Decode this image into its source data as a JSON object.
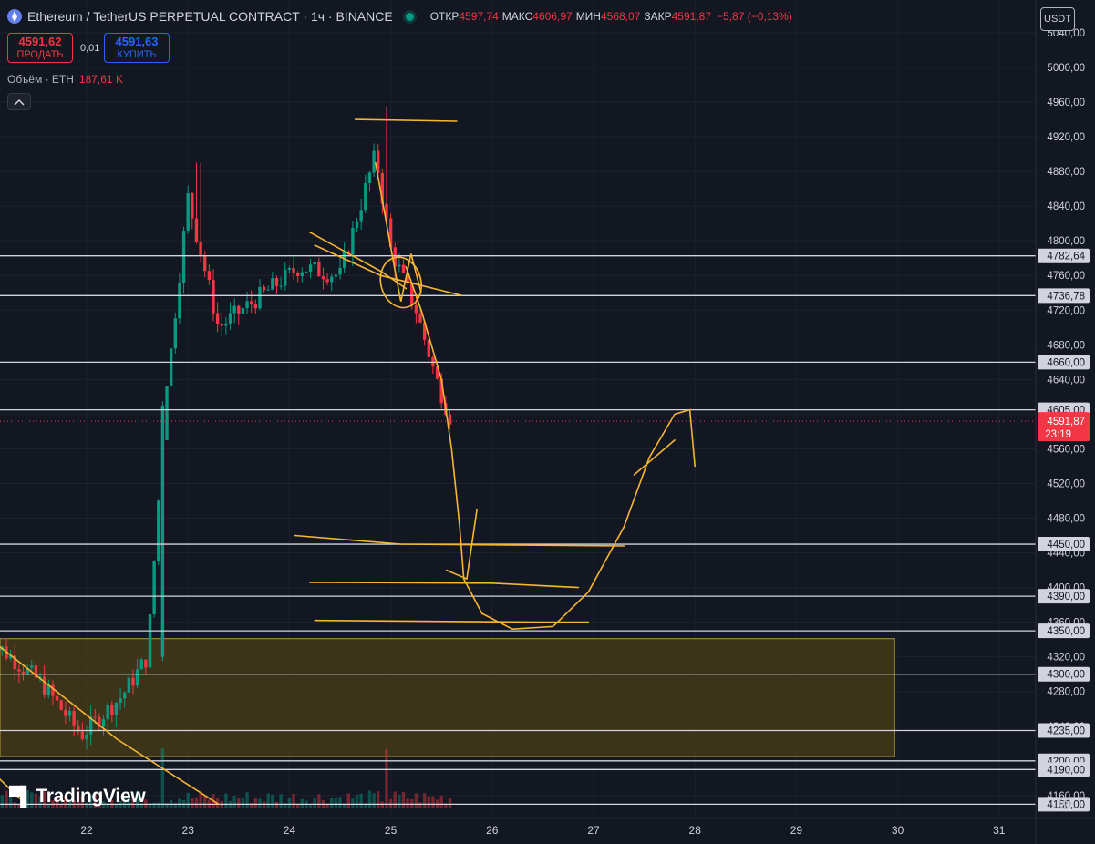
{
  "header": {
    "symbol": "Ethereum / TetherUS PERPETUAL CONTRACT · 1ч · BINANCE",
    "open_label": "ОТКР",
    "open_value": "4597,74",
    "high_label": "МАКС",
    "high_value": "4606,97",
    "low_label": "МИН",
    "low_value": "4568,07",
    "close_label": "ЗАКР",
    "close_value": "4591,87",
    "change": "−5,87 (−0,13%)",
    "logo_icon": "ethereum-logo-icon",
    "status_icon": "market-open-dot-icon"
  },
  "trade": {
    "sell_price": "4591,62",
    "sell_label": "ПРОДАТЬ",
    "spread": "0,01",
    "buy_price": "4591,63",
    "buy_label": "КУПИТЬ"
  },
  "volume_legend": {
    "label": "Объём · ETH",
    "value": "187,61 K"
  },
  "currency": "USDT",
  "brand": "TradingView",
  "colors": {
    "background": "#131722",
    "up": "#089981",
    "down": "#f23645",
    "drawing": "#f5b631",
    "level_line": "#d1d4dc",
    "zone_fill": "#4a3f17"
  },
  "chart_data": {
    "type": "candlestick",
    "x_axis": {
      "ticks": [
        "22",
        "23",
        "24",
        "25",
        "26",
        "27",
        "28",
        "29",
        "30",
        "31"
      ]
    },
    "y_axis": {
      "range": [
        4150,
        5050
      ],
      "ticks": [
        "5040,00",
        "5000,00",
        "4960,00",
        "4920,00",
        "4880,00",
        "4840,00",
        "4800,00",
        "4760,00",
        "4720,00",
        "4680,00",
        "4640,00",
        "4600,00",
        "4560,00",
        "4520,00",
        "4480,00",
        "4440,00",
        "4400,00",
        "4360,00",
        "4320,00",
        "4280,00",
        "4240,00",
        "4200,00",
        "4160,00"
      ]
    },
    "horizontal_levels": [
      {
        "price": 4782.64,
        "label": "4782,64"
      },
      {
        "price": 4736.78,
        "label": "4736,78"
      },
      {
        "price": 4660,
        "label": "4660,00"
      },
      {
        "price": 4605,
        "label": "4605,00"
      },
      {
        "price": 4450,
        "label": "4450,00"
      },
      {
        "price": 4390,
        "label": "4390,00"
      },
      {
        "price": 4350,
        "label": "4350,00"
      },
      {
        "price": 4300,
        "label": "4300,00"
      },
      {
        "price": 4235,
        "label": "4235,00"
      },
      {
        "price": 4200,
        "label": "4200,00"
      },
      {
        "price": 4190,
        "label": "4190,00"
      },
      {
        "price": 4150,
        "label": "4150,00"
      }
    ],
    "current_price": {
      "price": 4591.87,
      "label": "4591,87",
      "countdown": "23:19"
    },
    "demand_zone": {
      "price_top": 4341,
      "price_bottom": 4205,
      "day_end": 29.97
    },
    "candles_summary": [
      {
        "day": 21.15,
        "close": 4330
      },
      {
        "day": 21.55,
        "close": 4290
      },
      {
        "day": 21.95,
        "close": 4230
      },
      {
        "day": 22.35,
        "close": 4275
      },
      {
        "day": 22.6,
        "close": 4320
      },
      {
        "day": 22.78,
        "close": 4620
      },
      {
        "day": 23.0,
        "close": 4850
      },
      {
        "day": 23.3,
        "close": 4700
      },
      {
        "day": 23.7,
        "close": 4735
      },
      {
        "day": 24.1,
        "close": 4770
      },
      {
        "day": 24.5,
        "close": 4760
      },
      {
        "day": 24.85,
        "close": 4900
      },
      {
        "day": 25.0,
        "close": 4790
      },
      {
        "day": 25.25,
        "close": 4720
      },
      {
        "day": 25.45,
        "close": 4640
      },
      {
        "day": 25.6,
        "close": 4591.87
      }
    ]
  }
}
